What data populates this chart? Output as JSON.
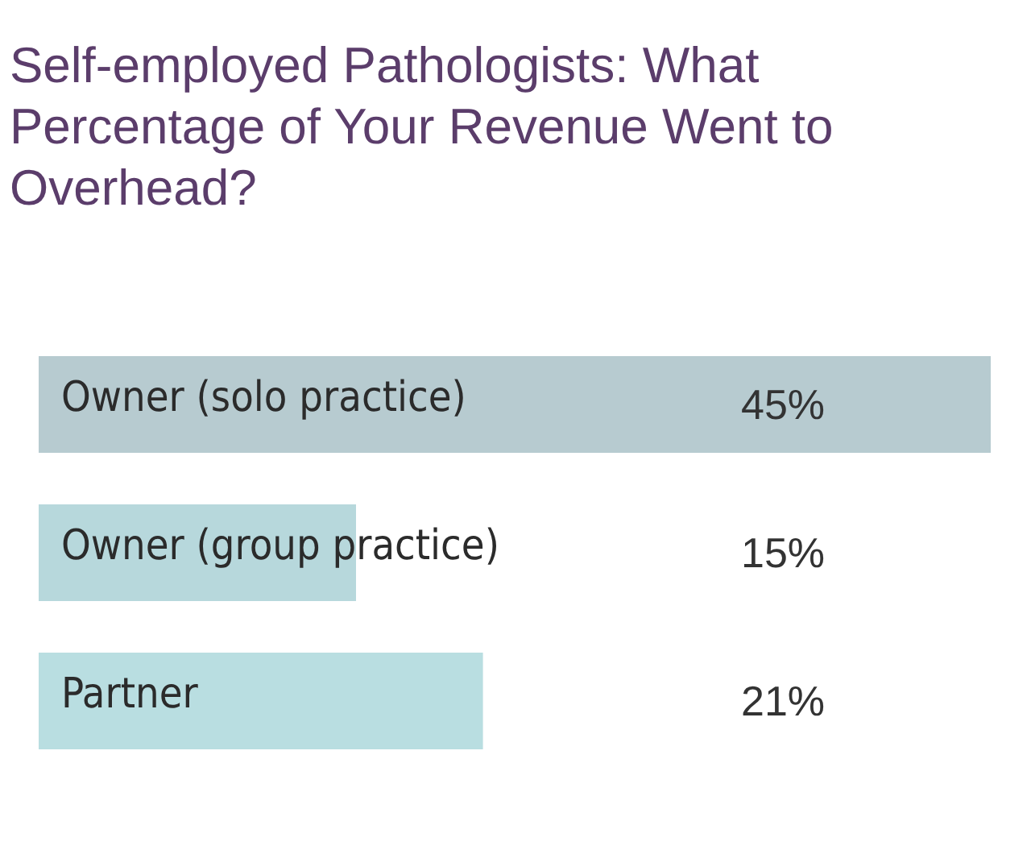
{
  "chart_data": {
    "type": "bar",
    "orientation": "horizontal",
    "title": "Self-employed Pathologists: What Percentage of Your Revenue Went to Overhead?",
    "categories": [
      "Owner (solo practice)",
      "Owner (group practice)",
      "Partner"
    ],
    "values": [
      45,
      15,
      21
    ],
    "colors": [
      "#b7cbd0",
      "#b7d8dc",
      "#b9dee1"
    ],
    "value_labels": [
      "45%",
      "15%",
      "21%"
    ],
    "xlim": [
      0,
      45
    ],
    "tick_labels": false,
    "legend": false
  }
}
